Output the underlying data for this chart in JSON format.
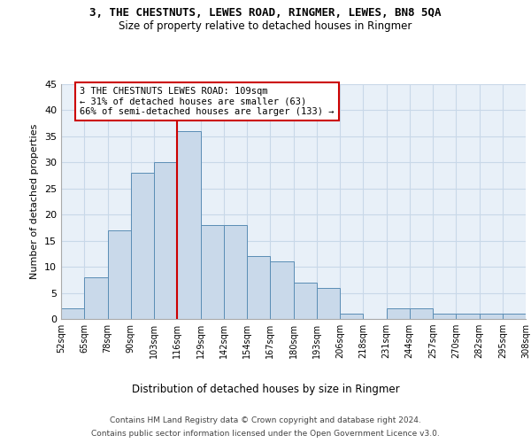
{
  "title": "3, THE CHESTNUTS, LEWES ROAD, RINGMER, LEWES, BN8 5QA",
  "subtitle": "Size of property relative to detached houses in Ringmer",
  "xlabel": "Distribution of detached houses by size in Ringmer",
  "ylabel": "Number of detached properties",
  "bin_labels": [
    "52sqm",
    "65sqm",
    "78sqm",
    "90sqm",
    "103sqm",
    "116sqm",
    "129sqm",
    "142sqm",
    "154sqm",
    "167sqm",
    "180sqm",
    "193sqm",
    "206sqm",
    "218sqm",
    "231sqm",
    "244sqm",
    "257sqm",
    "270sqm",
    "282sqm",
    "295sqm",
    "308sqm"
  ],
  "bar_heights": [
    2,
    8,
    17,
    28,
    30,
    36,
    18,
    18,
    12,
    11,
    7,
    6,
    1,
    0,
    2,
    2,
    1,
    1,
    1,
    1
  ],
  "bar_color": "#c9d9ea",
  "bar_edge_color": "#5a8db5",
  "vline_color": "#cc0000",
  "annotation_lines": [
    "3 THE CHESTNUTS LEWES ROAD: 109sqm",
    "← 31% of detached houses are smaller (63)",
    "66% of semi-detached houses are larger (133) →"
  ],
  "annotation_box_color": "#cc0000",
  "ylim": [
    0,
    45
  ],
  "yticks": [
    0,
    5,
    10,
    15,
    20,
    25,
    30,
    35,
    40,
    45
  ],
  "grid_color": "#c8d8e8",
  "background_color": "#e8f0f8",
  "footer_line1": "Contains HM Land Registry data © Crown copyright and database right 2024.",
  "footer_line2": "Contains public sector information licensed under the Open Government Licence v3.0."
}
